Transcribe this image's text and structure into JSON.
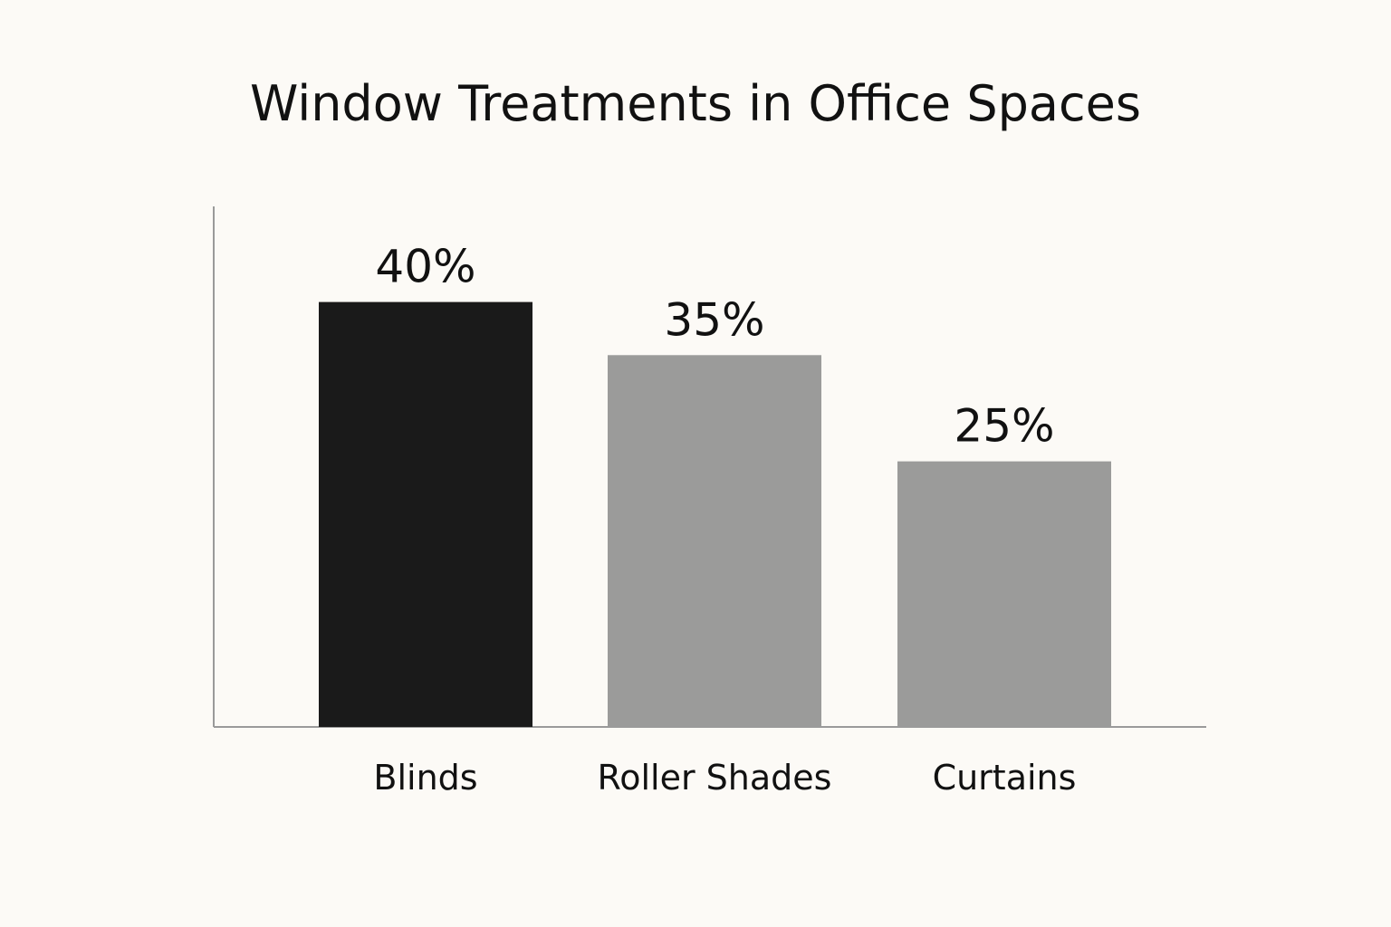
{
  "chart_data": {
    "type": "bar",
    "title": "Window Treatments in Office Spaces",
    "xlabel": "",
    "ylabel": "",
    "categories": [
      "Blinds",
      "Roller Shades",
      "Curtains"
    ],
    "values": [
      40,
      35,
      25
    ],
    "value_labels": [
      "40%",
      "35%",
      "25%"
    ],
    "ylim": [
      0,
      49
    ],
    "grid": false,
    "legend": "none",
    "colors": [
      "#1a1a1a",
      "#9b9b9a",
      "#9b9b9a"
    ],
    "axis_color": "#9a9a9a",
    "background": "#fcfaf6"
  }
}
